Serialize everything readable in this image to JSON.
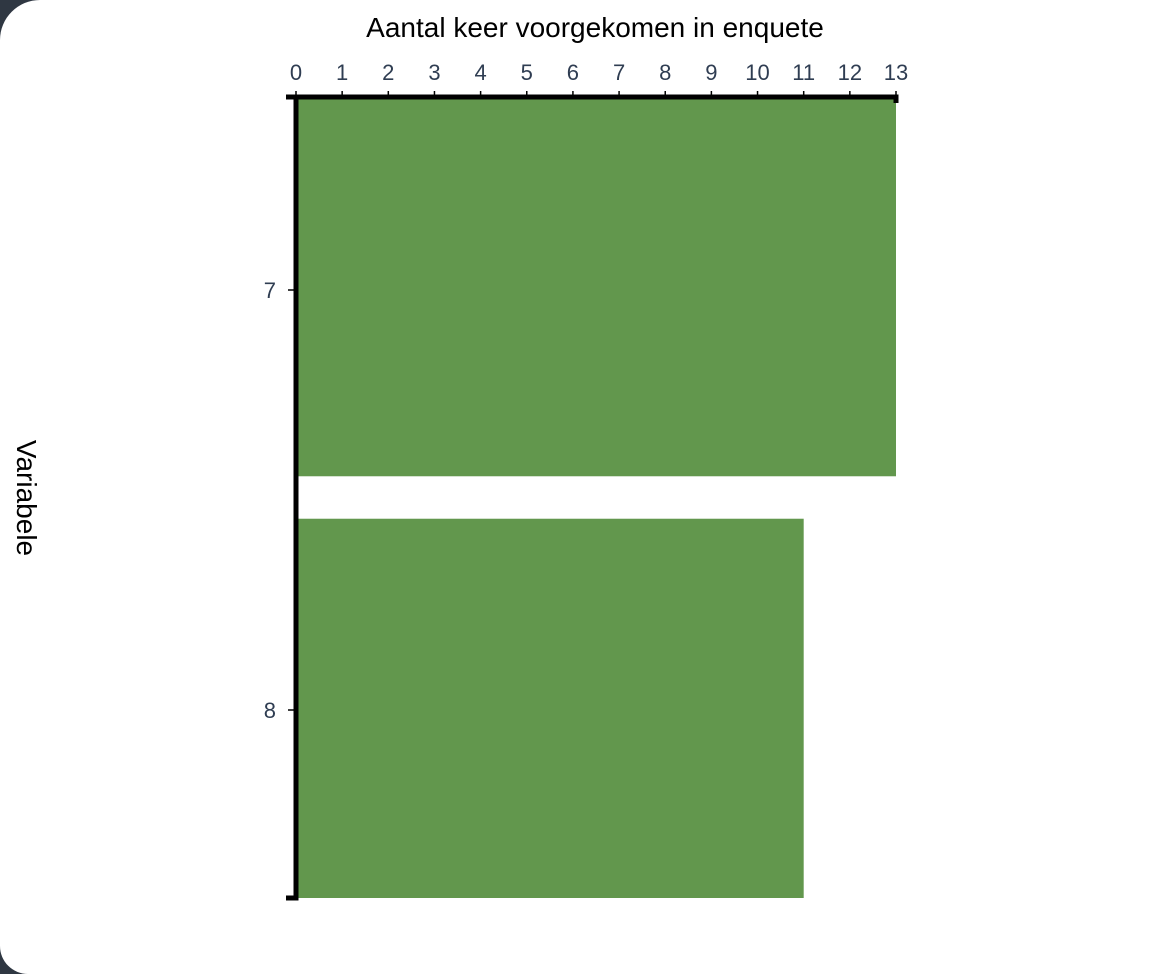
{
  "colors": {
    "bar": "#62974d",
    "axis": "#000000",
    "tick_text": "#2f3d52",
    "background": "#ffffff",
    "window_frame": "#2f3742"
  },
  "chart_data": {
    "type": "bar",
    "orientation": "horizontal",
    "categories": [
      "7",
      "8"
    ],
    "values": [
      13,
      11
    ],
    "xlabel": "Aantal keer voorgekomen in enquete",
    "ylabel": "Variabele",
    "x_axis_position": "top",
    "xlim": [
      0,
      13
    ],
    "xticks": [
      "0",
      "1",
      "2",
      "3",
      "4",
      "5",
      "6",
      "7",
      "8",
      "9",
      "10",
      "11",
      "12",
      "13"
    ],
    "grid": false,
    "legend": "none"
  }
}
